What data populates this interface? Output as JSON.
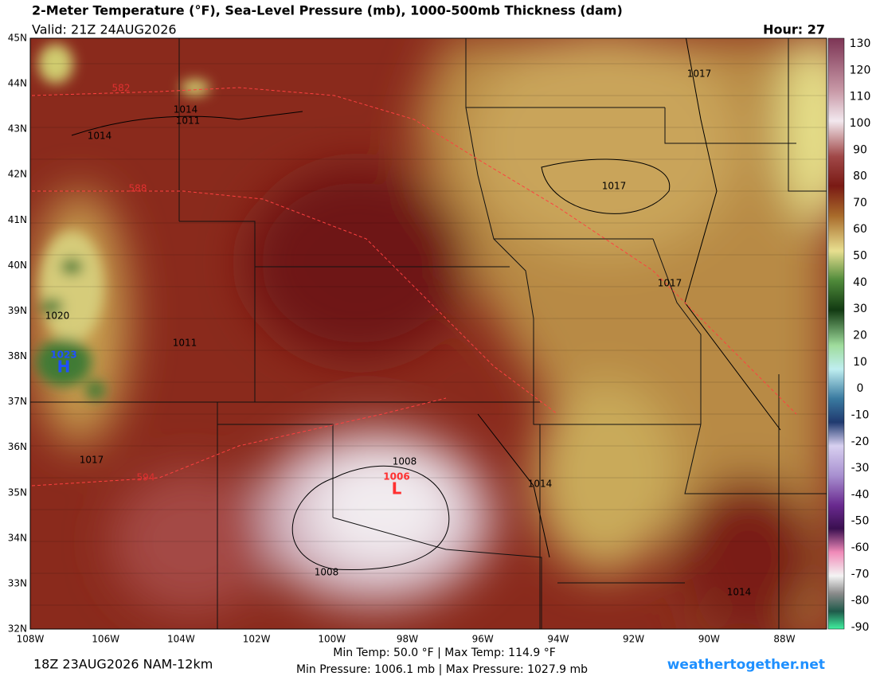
{
  "header": {
    "title": "2-Meter Temperature (°F), Sea-Level Pressure (mb), 1000-500mb Thickness (dam)",
    "valid": "Valid: 21Z 24AUG2026",
    "hour": "Hour: 27"
  },
  "map": {
    "lat_labels": [
      "45N",
      "44N",
      "43N",
      "42N",
      "41N",
      "40N",
      "39N",
      "38N",
      "37N",
      "36N",
      "35N",
      "34N",
      "33N",
      "32N"
    ],
    "lon_labels": [
      "108W",
      "106W",
      "104W",
      "102W",
      "100W",
      "98W",
      "96W",
      "94W",
      "92W",
      "90W",
      "88W"
    ],
    "pressure_labels": [
      "1017",
      "1014",
      "1011",
      "1014",
      "1017",
      "1017",
      "1020",
      "1011",
      "1017",
      "1008",
      "1014",
      "1008",
      "1014"
    ],
    "thickness_labels": [
      "582",
      "588",
      "594"
    ],
    "high": {
      "value": "1023",
      "symbol": "H"
    },
    "low": {
      "value": "1006",
      "symbol": "L"
    }
  },
  "colorbar": {
    "ticks": [
      "130",
      "120",
      "110",
      "100",
      "90",
      "80",
      "70",
      "60",
      "50",
      "40",
      "30",
      "20",
      "10",
      "0",
      "-10",
      "-20",
      "-30",
      "-40",
      "-50",
      "-60",
      "-70",
      "-80",
      "-90"
    ]
  },
  "footer": {
    "run": "18Z 23AUG2026 NAM-12km",
    "temps": "Min Temp:  50.0 °F | Max Temp: 114.9 °F",
    "pressures": "Min Pressure: 1006.1 mb | Max Pressure: 1027.9 mb",
    "site": "weathertogether.net"
  }
}
